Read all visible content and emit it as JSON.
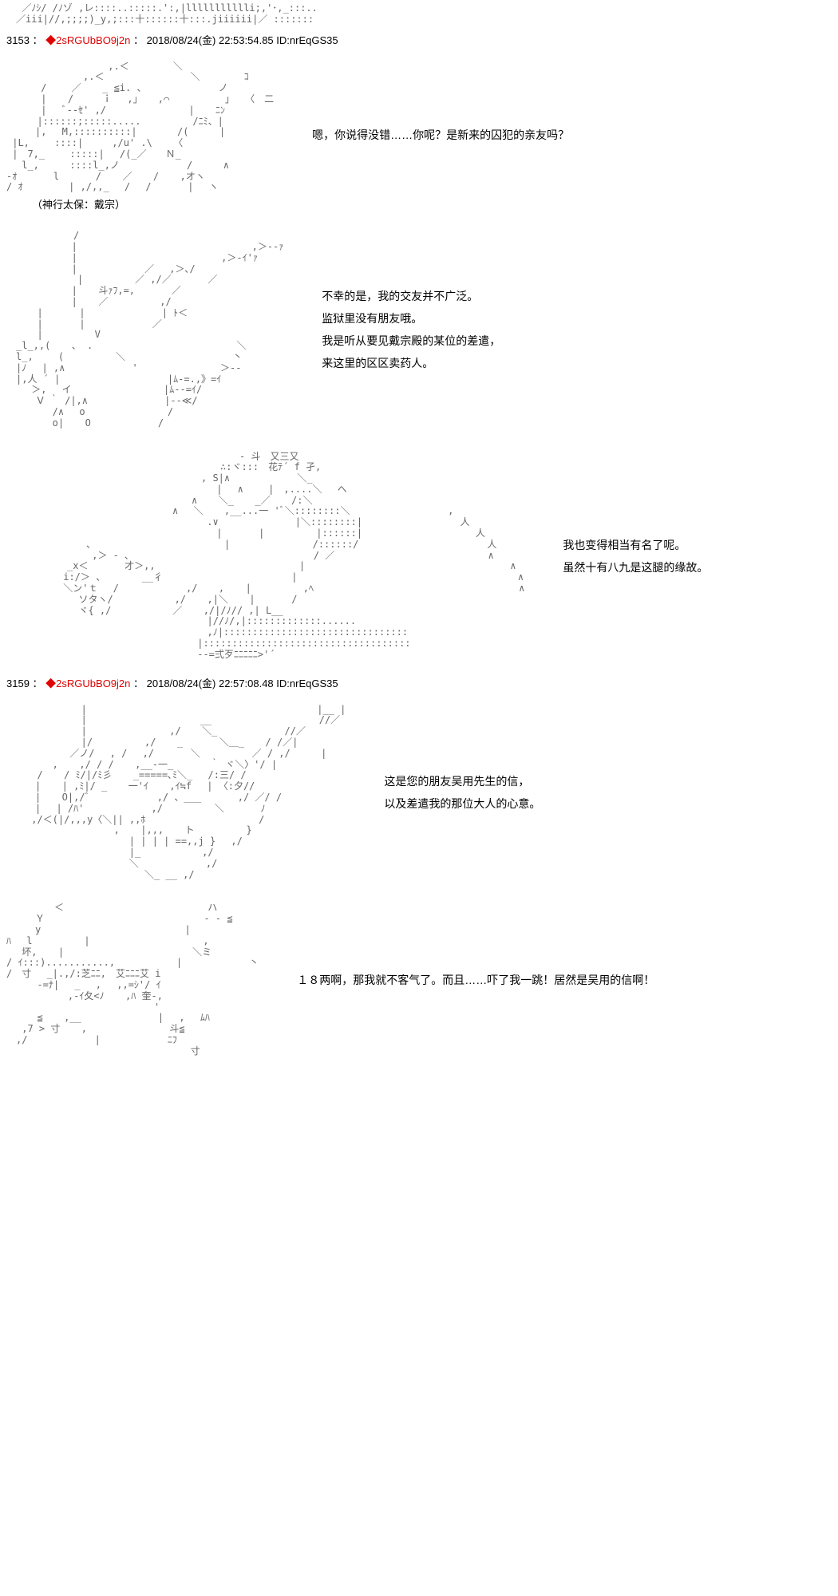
{
  "posts": [
    {
      "num": "3153",
      "trip": "◆2sRGUbBO9j2n",
      "date": "2018/08/24(金) 22:53:54.85",
      "id": "ID:nrEqGS35"
    },
    {
      "num": "3159",
      "trip": "◆2sRGUbBO9j2n",
      "date": "2018/08/24(金) 22:57:08.48",
      "id": "ID:nrEqGS35"
    }
  ],
  "top_fragment": "　 ／ﾉｼ/ /ﾉゾ ,レ::::..:::::.':,|llllllllllli;,'･,_:::..\n　／iii|//,;;;;)_y,;:::十::::::十:::.jiiiiii|／ :::::::",
  "panel1": {
    "art": "　　　　　　　　　　 ,.＜　　　　 ＼\n　　　　　　　　,.＜　　　　　　　　　＼　　　　 ｺ\n　　 　/　　 ／ 　 _ ≦i. 、　 　 　 　 　 ノ\n　　　 | 　 /　　　ｉ　 ,」 　,⌒　　 　 　 」　 〈　二\n　　　 |　 ﾞ--ｾ' ,/ 　 　 　 　 　 | 　 ﾆﾝ\n　 　 |::::::;:::::..... 　 　 　 /ﾆﾐ、|\n　　　|,　 M,::::::::::|　 　 　/( 　 　|\n |L,　　 ::::|　　　,/u' .\\ 　 〈\n |　7,_　　 :::::|　 /(_／　　Ｎ_\n 　l_,　 　 ::::l_,ノ 　 　 　 　 /　 　 ∧\n-ｵ 　 　 l 　 　 / 　 ／ 　 / 　 ,オヽ\n/ ｵ　 　 　 | ,/,,_ 　/ 　/ 　 　 | 　ヽ",
    "char_name": "（神行太保：戴宗）",
    "dialogue": "嗯，你说得没错……你呢？是新来的囚犯的亲友吗？"
  },
  "panel2": {
    "art_lines": [
      "　　　　　　　/",
      "　　　 　 　 | 　 　 　 　 　 　 　 　 　 　 　 ,＞--ｧ",
      "　　　 　 　 | 　 　 　 　 　 　 　 　 　 ,＞-ｲ'ｧ",
      "　　　 　 　 | 　 　 　 　 ／ 　,＞､/",
      "　 　 　 　 　| 　 　 　 ／ ,/／ 　 　 ／",
      "　　　 　 　 | 　 斗ｧﾌ,=, 　 　 ／",
      "　　　 　 　 | 　 ／ 　 　 　 ,/",
      "　 　 | 　 　 | 　 　 　 　 　| ﾄ＜",
      "　 　 | 　 　 | 　 　 　 　 ／",
      "　 　 | 　 　 　 V",
      "　_l_,,( 　 、 . 　 　 　 　 　 　 　 　 　 ＼",
      "　l_,　　 ( 　 　 　 ＼ 　 　 　 　 　 　 　丶",
      "　|ﾉ 　| ,∧ 　 　 　 　 ' 　 　 　 　 　 ＞--",
      "　|,人 ´ | 　 　 　 　 　 　 　|ﾑ-=.,》=ｲ",
      "　 　＞, 　イ 　 　 　 　 　 　|ﾑ--=ｲ/",
      "　 　 Ⅴ ｀ /|,∧ 　 　 　 　 　|--≪/",
      "　 　 　 /∧ 　o 　 　 　 　 　 /",
      "　 　 　 o| 　 O 　 　 　 　 /"
    ],
    "dialogue": [
      "不幸的是，我的交友并不广泛。",
      "监狱里没有朋友哦。",
      "我是听从要见戴宗殿的某位的差遣，",
      "来这里的区区卖药人。"
    ]
  },
  "panel3": {
    "art_lines": [
      "　　　　　　　　　　　　　　　　　　　　　- 斗　又三又",
      "　　　　　　　　　　　　　　　　　　　∴:ヾ:::　花ﾃ´ f 孑,",
      "　　　　　　　　　　　　　　　　　, S|∧ 　 　 　 　 ＼_",
      "　　　　　　　　　　　　　　　　　　 | 　∧　　 |　,....＼　 へ",
      "　　　　　　　　　　　　　　　　∧ 　 ＼_ 　 _／ 　 /:＼",
      "　　　　　　　　　　　　　　∧　 ＼ 　 ,__...一 'ﾞ＼::::::::＼ 　 　 　 　 　 　 ,",
      "　　　　　　　　　　　　　　　　　 .∨ 　 　 　 　 　|＼::::::::| 　 　 　 　 　 　 人",
      "　　　　　　　　　　　　　　　　　　 | 　 　 | 　 　 　 |::::::| 　 　 　 　 　 　 　 人",
      "　　　　　、 　 　 　 　 　 　 　 　 | 　 　 　 　 　 /::::::/ 　 　 　 　 　 　 　 　 人",
      "　　　　　 ,＞ - ､ 　 　 　 　 　　 　 　 　 　 　 　 / ／　 　 　 　 　 　 　 　 　 　 ∧",
      "　　　_x＜ 　 　 才＞,, 　 　 　 　 　 　 　 　 　 | 　 　 　 　 　 　 　 　 　 　 　 　 　 ∧",
      "　　 i:/＞ 、 　 　 __彳 　 　 　 　 　 　 　 　 | 　 　 　 　 　 　 　 　 　 　 　 　 　 　 ∧",
      "　　 ＼ン'ｔ　 / 　 　 　 　 ,/ 　 , 　 | 　 　 　 ,ﾍ 　 　 　 　 　 　 　 　 　 　 　 　 　 ∧",
      "　　 　 ソタヽ/ 　 　 　 　,/ 　 ,|＼ 　 | 　 　 / 　 　 　 　 　 　 　 　",
      "　　 　 ヾ{ ,/ 　 　 　 　／ 　 ,/|/ﾉ// ,| L__",
      "　 　 　 　 　 　 　 　 　 　 　 |//ﾉ/,|:::::::::::::......",
      "　 　 　 　 　 　 　 　 　 　 　 ,ﾉ|::::::::::::::::::::::::::::::::",
      "　　　　　　　　　　　　　　　　 |::::::::::::::::::::::::::::::::::::",
      "　　　　　　　　　　　　　　　　 --=弍歹ﾆﾆﾆﾆﾆ>'´"
    ],
    "dialogue": [
      "我也变得相当有名了呢。",
      "虽然十有八九是这腿的缘故。"
    ]
  },
  "panel4": {
    "art_lines": [
      "　　　　 　 　 | 　 　 　 　 　 　 　 　 　 　 　 　 　 　 　|__ |",
      "　　　　 　 　 | 　 　 　 　 　 　 　 __　 　 　 　 　 　 　 //／",
      "　　　　 　 　 | 　 　 　 　 　 ,/ 　 ＼_ 　 　 　 　 //／",
      "　　　　 　 　 |/ 　 　 　 ,/ 　 _ 　 　 ＼＿_ 　 / /／|",
      "　　　　　　 ／ノ/　 , / 　,/ 　 　 ＼ 　 　 　 ／ / ,/ 　 　|",
      "　 　 　 , 　 ,/ / / 　 ,__-一_ 　 　 ｀ ヾ＼〉'/ |",
      "　 　 / 　 / ﾐ/|/ﾐ彡 　 _=====､ﾐ＼_　 /:三/ /",
      "　　　| 　 | ,ﾐ|/ _ 　 一'ｲ 　 ,ｲ≒f 　| 〈:夕//",
      "　　　| 　 O|,/ﾞ 　 　 　 　 ,/ 、___ 　 　 ,/ ／/ /",
      "　　　| 　| /ﾊ' 　 　 　 　 ,/ 　 　 　 ＼ 　 　 ﾉ",
      "　 　,/＜(|/,,,y〈＼|| ,,ﾎ 　 　 　 　 　 　 　 /",
      "　 　 　 　 　 　 　 , 　 |,,, 　 ト 　 　 　 }",
      "　 　 　 　 　 　 　 　 | | | | ==,,j }　 ,/",
      "　 　 　 　 　 　 　 　 |_　 　 　 　 ,/",
      "　 　 　 　 　 　 　 　 ＼ 　 　 　 　 ,/",
      "　 　 　 　 　 　 　 　 　 ＼_ __ ,/"
    ],
    "dialogue": [
      "这是您的朋友吴用先生的信，",
      "以及差遣我的那位大人的心意。"
    ]
  },
  "panel5": {
    "art_lines": [
      "　　　　　＜ 　 　 　 　 　 　 　 　 　 ハ",
      "　　　Ｙ 　 　 　 　 　 　 　 　 　 　 - - ≦",
      "　　　y 　 　 　 　 　 　 　 　 　 |",
      "ﾊ　 l 　 　 　 | 　 　 　 　 　 　 　 ,",
      "　 坏, 　 | 　 　 　 　 　 　 　 　 ＼ミ",
      "/ ｲ:::)..........., 　 　 　 　| 　 　 　 　 丶",
      "/　寸　 _|.,/:芝ﾆﾆ,　艾ﾆﾆﾆ艾 i",
      "　 　 -=ﾅ| 　_ 　, 　,,=ｼ'/ ｲ",
      "　 　 　 　 ,-ｲ夂<ﾉ 　 ,ﾊ 奎-,",
      "　 　 　 　 　 　 　 　 　 　'",
      "　 　 ≦ 　 ,__ 　 　 　 　 　|　 ,　 ﾑﾊ",
      "　 ,7 > 寸 　 , 　 　 　 　 　 斗≦",
      "　,/ 　 　 　 　 | 　 　 　 　 ﾆﾌ",
      "　 　 　 　 　 　 　 　 　 　 　 　 寸"
    ],
    "dialogue": "１８两啊，那我就不客气了。而且……吓了我一跳！居然是吴用的信啊！"
  }
}
